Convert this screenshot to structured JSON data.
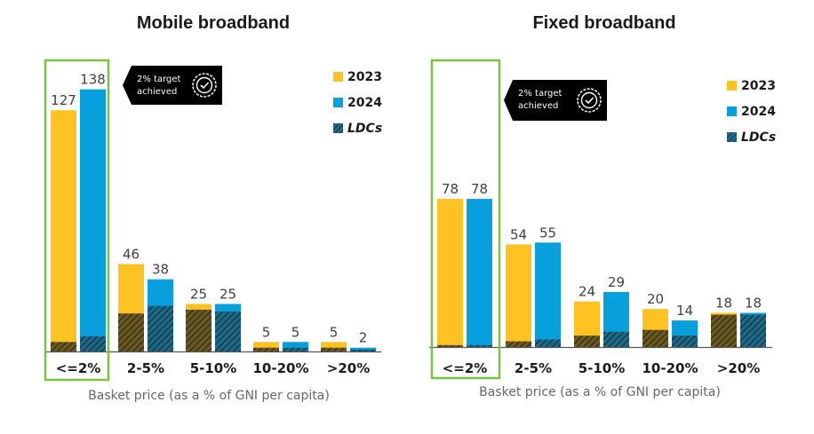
{
  "chart_data": [
    {
      "type": "bar",
      "title": "Mobile broadband",
      "xlabel": "Basket price (as a % of GNI per capita)",
      "ylabel": "",
      "categories": [
        "<=2%",
        "2-5%",
        "5-10%",
        "10-20%",
        ">20%"
      ],
      "series": [
        {
          "name": "2023",
          "values": [
            127,
            46,
            25,
            5,
            5
          ]
        },
        {
          "name": "2024",
          "values": [
            138,
            38,
            25,
            5,
            2
          ]
        },
        {
          "name": "LDCs",
          "values": [
            6,
            20,
            22,
            2,
            3
          ],
          "overlay_on": [
            "2023",
            "2024"
          ],
          "note": "LDC portion (estimated from hatched segments)"
        }
      ],
      "ldc_by_year": {
        "2023": [
          5,
          20,
          22,
          2,
          2
        ],
        "2024": [
          8,
          24,
          21,
          2,
          1
        ]
      },
      "highlight_category": "<=2%",
      "annotation": {
        "line1": "2% target",
        "line2": "achieved"
      },
      "legend": [
        "2023",
        "2024",
        "LDCs"
      ],
      "ylim": [
        0,
        150
      ],
      "grid": false,
      "legend_position": "top-right"
    },
    {
      "type": "bar",
      "title": "Fixed broadband",
      "xlabel": "Basket price (as a % of GNI per capita)",
      "ylabel": "",
      "categories": [
        "<=2%",
        "2-5%",
        "5-10%",
        "10-20%",
        ">20%"
      ],
      "series": [
        {
          "name": "2023",
          "values": [
            78,
            54,
            24,
            20,
            18
          ]
        },
        {
          "name": "2024",
          "values": [
            78,
            55,
            29,
            14,
            18
          ]
        },
        {
          "name": "LDCs",
          "values": [
            1,
            3,
            6,
            9,
            17
          ],
          "overlay_on": [
            "2023",
            "2024"
          ],
          "note": "LDC portion (estimated from hatched segments)"
        }
      ],
      "ldc_by_year": {
        "2023": [
          1,
          3,
          6,
          9,
          17
        ],
        "2024": [
          1,
          4,
          8,
          6,
          17
        ]
      },
      "highlight_category": "<=2%",
      "annotation": {
        "line1": "2% target",
        "line2": "achieved"
      },
      "legend": [
        "2023",
        "2024",
        "LDCs"
      ],
      "ylim": [
        0,
        150
      ],
      "grid": false,
      "legend_position": "top-right"
    }
  ],
  "colors": {
    "y2023": "#FFC222",
    "y2024": "#079FDC",
    "hatch_dark": "#3a3a2a",
    "highlight_box": "#7AC143",
    "annotation_bg": "#000000",
    "axis": "#555555"
  }
}
